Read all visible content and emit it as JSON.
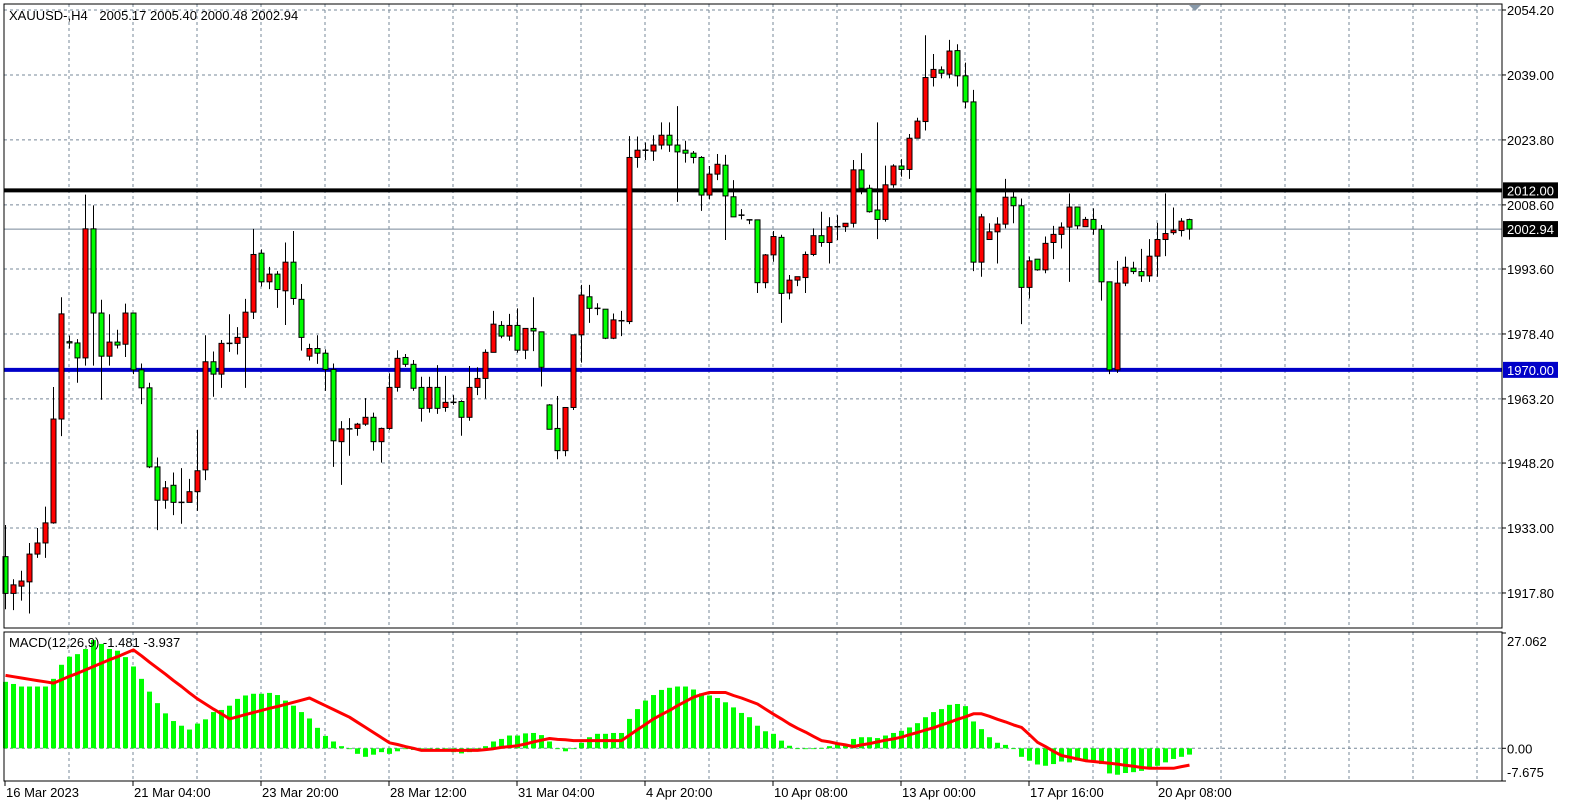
{
  "header": {
    "symbol": "XAUUSD-,H4",
    "ohlc_text": "2005.17 2005.40 2000.48 2002.94"
  },
  "macd_pane": {
    "label": "MACD(12,26,9) -1.481 -3.937",
    "axis_labels": [
      {
        "value": 27.062,
        "label": "27.062"
      },
      {
        "value": 0,
        "label": "0.00"
      },
      {
        "value": -7.675,
        "label": "-7.675"
      }
    ]
  },
  "chart_data": {
    "type": "candlestick",
    "symbol": "XAUUSD-",
    "timeframe": "H4",
    "ylim": [
      1917.8,
      2054.2
    ],
    "grid": true,
    "colors": {
      "bull": "#ff0000",
      "bear": "#00ff00",
      "outline": "#000000",
      "grid": "#778899",
      "macd_histogram": "#00ff00",
      "signal_line": "#ff0000"
    },
    "price_ticks": [
      {
        "value": 2054.2,
        "label": "2054.20"
      },
      {
        "value": 2039.0,
        "label": "2039.00"
      },
      {
        "value": 2023.8,
        "label": "2023.80"
      },
      {
        "value": 2008.6,
        "label": "2008.60"
      },
      {
        "value": 1993.6,
        "label": "1993.60"
      },
      {
        "value": 1978.4,
        "label": "1978.40"
      },
      {
        "value": 1963.2,
        "label": "1963.20"
      },
      {
        "value": 1948.2,
        "label": "1948.20"
      },
      {
        "value": 1933.0,
        "label": "1933.00"
      },
      {
        "value": 1917.8,
        "label": "1917.80"
      }
    ],
    "levels": [
      {
        "price": 2012.0,
        "label": "2012.00",
        "color": "#000000",
        "kind": "horizontal-line"
      },
      {
        "price": 1970.0,
        "label": "1970.00",
        "color": "#0000c8",
        "kind": "horizontal-line"
      },
      {
        "price": 2002.94,
        "label": "2002.94",
        "color": "#778899",
        "kind": "bid-line"
      }
    ],
    "time_labels": [
      {
        "bar": 0,
        "label": "16 Mar 2023"
      },
      {
        "bar": 16,
        "label": "21 Mar 04:00"
      },
      {
        "bar": 32,
        "label": "23 Mar 20:00"
      },
      {
        "bar": 48,
        "label": "28 Mar 12:00"
      },
      {
        "bar": 64,
        "label": "31 Mar 04:00"
      },
      {
        "bar": 80,
        "label": "4 Apr 20:00"
      },
      {
        "bar": 96,
        "label": "10 Apr 08:00"
      },
      {
        "bar": 112,
        "label": "13 Apr 00:00"
      },
      {
        "bar": 128,
        "label": "17 Apr 16:00"
      },
      {
        "bar": 144,
        "label": "20 Apr 08:00"
      }
    ],
    "ohlc_fields": [
      "open",
      "high",
      "low",
      "close"
    ],
    "ohlc": [
      [
        1926.3,
        1933.7,
        1914.0,
        1917.7
      ],
      [
        1917.7,
        1921.0,
        1913.8,
        1919.7
      ],
      [
        1919.4,
        1923.0,
        1916.0,
        1920.6
      ],
      [
        1920.4,
        1929.5,
        1913.0,
        1926.9
      ],
      [
        1926.9,
        1933.0,
        1926.0,
        1929.5
      ],
      [
        1929.5,
        1938.0,
        1926.0,
        1934.2
      ],
      [
        1934.2,
        1966.0,
        1934.0,
        1958.5
      ],
      [
        1958.5,
        1987.0,
        1954.5,
        1983.1
      ],
      [
        1976.6,
        1978.0,
        1975.0,
        1976.3
      ],
      [
        1976.3,
        1977.2,
        1967.0,
        1972.8
      ],
      [
        1972.8,
        2011.0,
        1971.0,
        2003.0
      ],
      [
        2003.0,
        2008.5,
        1971.0,
        1983.3
      ],
      [
        1983.3,
        1986.4,
        1963.0,
        1973.2
      ],
      [
        1973.2,
        1983.0,
        1971.0,
        1976.5
      ],
      [
        1976.5,
        1979.4,
        1975.0,
        1975.8
      ],
      [
        1976.0,
        1985.5,
        1973.0,
        1983.3
      ],
      [
        1983.3,
        1983.3,
        1969.0,
        1970.0
      ],
      [
        1970.0,
        1971.5,
        1962.0,
        1965.8
      ],
      [
        1965.8,
        1967.0,
        1947.0,
        1947.3
      ],
      [
        1947.3,
        1949.5,
        1932.5,
        1939.5
      ],
      [
        1939.5,
        1944.0,
        1937.5,
        1942.4
      ],
      [
        1943.0,
        1946.0,
        1936.0,
        1939.0
      ],
      [
        1939.0,
        1947.0,
        1934.0,
        1939.0
      ],
      [
        1939.0,
        1944.5,
        1939.0,
        1941.5
      ],
      [
        1941.5,
        1956.0,
        1937.0,
        1946.4
      ],
      [
        1946.6,
        1978.1,
        1944.2,
        1971.9
      ],
      [
        1971.9,
        1974.3,
        1963.7,
        1969.0
      ],
      [
        1969.0,
        1977.0,
        1965.8,
        1976.2
      ],
      [
        1976.2,
        1983.0,
        1974.2,
        1976.2
      ],
      [
        1976.2,
        1980.0,
        1973.6,
        1977.6
      ],
      [
        1977.6,
        1986.6,
        1965.8,
        1983.5
      ],
      [
        1983.5,
        2003.0,
        1981.9,
        1997.0
      ],
      [
        1997.3,
        1998.2,
        1989.5,
        1990.6
      ],
      [
        1990.6,
        1994.1,
        1988.9,
        1992.4
      ],
      [
        1992.4,
        1993.1,
        1984.5,
        1988.8
      ],
      [
        1988.5,
        1999.8,
        1980.5,
        1995.2
      ],
      [
        1995.2,
        2002.5,
        1985.2,
        1986.7
      ],
      [
        1986.5,
        1990.1,
        1974.5,
        1977.6
      ],
      [
        1973.2,
        1976.1,
        1972.2,
        1975.0
      ],
      [
        1975.0,
        1978.1,
        1971.4,
        1973.9
      ],
      [
        1973.9,
        1974.8,
        1965.1,
        1970.1
      ],
      [
        1970.1,
        1971.5,
        1947.3,
        1953.4
      ],
      [
        1953.2,
        1958.0,
        1943.1,
        1956.2
      ],
      [
        1956.2,
        1958.7,
        1949.9,
        1956.2
      ],
      [
        1956.3,
        1957.6,
        1954.6,
        1957.3
      ],
      [
        1957.3,
        1963.4,
        1956.9,
        1958.9
      ],
      [
        1958.9,
        1960.0,
        1951.1,
        1953.2
      ],
      [
        1953.2,
        1956.5,
        1948.3,
        1956.3
      ],
      [
        1956.3,
        1969.2,
        1956.0,
        1965.9
      ],
      [
        1965.9,
        1974.6,
        1964.9,
        1972.7
      ],
      [
        1972.9,
        1973.7,
        1970.7,
        1971.3
      ],
      [
        1971.3,
        1972.3,
        1965.1,
        1965.7
      ],
      [
        1965.9,
        1968.4,
        1957.9,
        1961.0
      ],
      [
        1961.0,
        1968.4,
        1960.0,
        1965.9
      ],
      [
        1965.9,
        1971.1,
        1959.7,
        1961.0
      ],
      [
        1961.2,
        1968.6,
        1960.2,
        1962.4
      ],
      [
        1962.4,
        1964.1,
        1961.8,
        1962.4
      ],
      [
        1962.6,
        1962.9,
        1954.6,
        1958.9
      ],
      [
        1958.9,
        1970.9,
        1958.1,
        1965.9
      ],
      [
        1965.9,
        1970.6,
        1964.1,
        1968.0
      ],
      [
        1968.0,
        1974.8,
        1963.3,
        1974.1
      ],
      [
        1974.1,
        1983.8,
        1974.1,
        1980.7
      ],
      [
        1980.4,
        1981.4,
        1977.4,
        1977.9
      ],
      [
        1977.9,
        1983.1,
        1976.8,
        1980.4
      ],
      [
        1980.4,
        1984.4,
        1974.0,
        1974.6
      ],
      [
        1974.6,
        1979.7,
        1972.5,
        1979.7
      ],
      [
        1979.7,
        1987.0,
        1974.4,
        1979.1
      ],
      [
        1978.9,
        1978.9,
        1966.1,
        1970.6
      ],
      [
        1961.8,
        1962.0,
        1956.1,
        1956.1
      ],
      [
        1956.3,
        1963.9,
        1949.1,
        1951.1
      ],
      [
        1951.1,
        1961.2,
        1949.8,
        1961.2
      ],
      [
        1961.2,
        1978.2,
        1960.6,
        1978.2
      ],
      [
        1978.2,
        1989.9,
        1971.7,
        1987.5
      ],
      [
        1987.1,
        1989.9,
        1981.0,
        1984.4
      ],
      [
        1984.4,
        1985.6,
        1982.8,
        1984.4
      ],
      [
        1984.2,
        1984.2,
        1977.2,
        1977.4
      ],
      [
        1977.4,
        1983.2,
        1977.2,
        1981.7
      ],
      [
        1981.5,
        1983.8,
        1977.9,
        1981.5
      ],
      [
        1981.3,
        2024.7,
        1980.7,
        2019.7
      ],
      [
        2019.7,
        2024.6,
        2017.3,
        2021.4
      ],
      [
        2021.4,
        2023.2,
        2019.1,
        2021.4
      ],
      [
        2021.2,
        2024.9,
        2018.9,
        2022.6
      ],
      [
        2022.6,
        2027.9,
        2021.6,
        2024.9
      ],
      [
        2024.9,
        2027.9,
        2021.0,
        2022.6
      ],
      [
        2022.6,
        2031.7,
        2009.3,
        2021.0
      ],
      [
        2021.4,
        2023.6,
        2018.5,
        2020.7
      ],
      [
        2020.7,
        2021.2,
        2018.3,
        2019.7
      ],
      [
        2019.7,
        2020.0,
        2007.2,
        2010.9
      ],
      [
        2010.9,
        2017.7,
        2009.9,
        2015.8
      ],
      [
        2015.8,
        2020.5,
        2014.4,
        2018.1
      ],
      [
        2017.9,
        2020.3,
        2000.4,
        2010.7
      ],
      [
        2010.5,
        2014.4,
        2005.8,
        2005.8
      ],
      [
        2006.2,
        2007.6,
        2005.2,
        2006.2
      ],
      [
        2005.1,
        2005.1,
        2004.1,
        2005.1
      ],
      [
        2005.1,
        2005.1,
        1988.0,
        1990.4
      ],
      [
        1990.4,
        1997.1,
        1989.1,
        1996.9
      ],
      [
        1996.9,
        2002.5,
        1995.3,
        2001.2
      ],
      [
        2001.0,
        2001.6,
        1981.0,
        1987.9
      ],
      [
        1988.0,
        1992.2,
        1986.5,
        1991.0
      ],
      [
        1991.0,
        1991.8,
        1989.6,
        1991.8
      ],
      [
        1991.6,
        1997.7,
        1988.0,
        1997.0
      ],
      [
        1997.0,
        2003.1,
        1996.6,
        2001.4
      ],
      [
        2001.4,
        2007.0,
        1998.8,
        1999.8
      ],
      [
        1999.8,
        2005.7,
        1994.9,
        2003.5
      ],
      [
        2003.5,
        2006.2,
        2000.4,
        2003.5
      ],
      [
        2003.5,
        2004.3,
        2002.3,
        2004.3
      ],
      [
        2004.3,
        2019.1,
        2003.3,
        2016.8
      ],
      [
        2016.8,
        2020.7,
        2011.1,
        2012.5
      ],
      [
        2012.5,
        2013.3,
        2006.8,
        2007.0
      ],
      [
        2007.4,
        2027.9,
        2000.6,
        2005.2
      ],
      [
        2005.2,
        2017.8,
        2004.7,
        2013.3
      ],
      [
        2013.3,
        2018.1,
        2012.6,
        2017.7
      ],
      [
        2017.7,
        2019.3,
        2015.2,
        2016.9
      ],
      [
        2016.9,
        2025.2,
        2014.7,
        2024.2
      ],
      [
        2024.2,
        2029.0,
        2024.2,
        2028.2
      ],
      [
        2028.1,
        2048.3,
        2026.0,
        2038.4
      ],
      [
        2038.4,
        2043.9,
        2036.3,
        2040.3
      ],
      [
        2040.2,
        2041.0,
        2038.2,
        2039.4
      ],
      [
        2039.2,
        2047.2,
        2038.2,
        2044.6
      ],
      [
        2044.7,
        2046.2,
        2036.3,
        2038.8
      ],
      [
        2038.8,
        2041.9,
        2031.2,
        2032.7
      ],
      [
        2032.7,
        2035.5,
        1993.1,
        1995.2
      ],
      [
        1995.2,
        2006.5,
        1991.8,
        2005.8
      ],
      [
        2000.5,
        2004.3,
        2000.5,
        2002.3
      ],
      [
        2002.3,
        2005.7,
        1994.9,
        2004.1
      ],
      [
        2004.1,
        2014.7,
        2003.1,
        2010.4
      ],
      [
        2010.4,
        2012.2,
        2004.3,
        2008.4
      ],
      [
        2008.4,
        2010.1,
        1980.7,
        1989.3
      ],
      [
        1989.3,
        1996.5,
        1986.7,
        1995.5
      ],
      [
        1995.9,
        1995.9,
        1993.2,
        1993.4
      ],
      [
        1993.4,
        2001.2,
        1992.6,
        1999.6
      ],
      [
        1999.8,
        2003.7,
        1995.9,
        2001.7
      ],
      [
        2001.7,
        2004.5,
        1998.4,
        2003.4
      ],
      [
        2003.4,
        2011.3,
        1990.6,
        2008.1
      ],
      [
        2008.1,
        2008.1,
        2002.9,
        2003.7
      ],
      [
        2003.5,
        2005.8,
        2003.5,
        2005.2
      ],
      [
        2005.2,
        2007.8,
        2001.6,
        2002.9
      ],
      [
        2002.9,
        2003.9,
        1986.2,
        1990.6
      ],
      [
        1990.6,
        1990.6,
        1969.0,
        1970.0
      ],
      [
        1970.0,
        1995.5,
        1969.3,
        1990.3
      ],
      [
        1990.3,
        1996.5,
        1989.6,
        1994.0
      ],
      [
        1993.8,
        1995.3,
        1992.4,
        1993.0
      ],
      [
        1993.0,
        1998.3,
        1990.6,
        1992.0
      ],
      [
        1992.0,
        2000.6,
        1990.6,
        1996.6
      ],
      [
        1996.6,
        2004.4,
        1991.8,
        2000.5
      ],
      [
        2000.5,
        2011.3,
        1996.6,
        2001.9
      ],
      [
        2002.1,
        2008.0,
        2001.6,
        2002.7
      ],
      [
        2002.6,
        2005.5,
        2001.2,
        2004.8
      ],
      [
        2005.17,
        2005.4,
        2000.48,
        2002.94
      ]
    ],
    "macd": {
      "ylim": [
        -7.675,
        27.062
      ],
      "histogram": [
        15.6,
        15.1,
        14.5,
        14.5,
        14.5,
        14.5,
        16.3,
        19.6,
        21.5,
        22.1,
        23.3,
        25.4,
        24.5,
        23.3,
        22.9,
        21.4,
        19.2,
        16.3,
        13.3,
        10.6,
        8.2,
        6.4,
        5.3,
        4.4,
        5.8,
        6.8,
        8.5,
        9.0,
        10.0,
        11.6,
        12.4,
        12.8,
        12.8,
        13.0,
        12.5,
        11.2,
        10.0,
        8.5,
        7.0,
        4.8,
        2.9,
        1.6,
        0.5,
        -0.2,
        -1.3,
        -2.0,
        -1.5,
        -0.9,
        -1.3,
        -0.7,
        -0.2,
        -0.4,
        -0.3,
        -0.4,
        -0.4,
        -0.4,
        -0.9,
        -1.2,
        -0.9,
        -0.5,
        0.5,
        1.6,
        2.2,
        3.0,
        3.0,
        3.5,
        3.6,
        3.1,
        1.6,
        -0.2,
        -0.7,
        0.0,
        1.3,
        2.6,
        3.4,
        3.4,
        3.6,
        3.6,
        6.9,
        9.2,
        11.2,
        12.5,
        13.7,
        14.2,
        14.5,
        14.5,
        13.8,
        12.9,
        12.4,
        11.8,
        10.8,
        9.6,
        8.3,
        7.3,
        5.3,
        4.0,
        3.4,
        1.8,
        0.6,
        0.0,
        -0.2,
        -0.1,
        0.1,
        0.5,
        0.9,
        1.0,
        2.2,
        2.6,
        2.6,
        2.4,
        3.0,
        3.6,
        4.1,
        4.9,
        5.9,
        7.3,
        8.5,
        9.2,
        10.2,
        10.4,
        9.9,
        6.3,
        4.5,
        2.6,
        1.3,
        0.8,
        0.0,
        -2.0,
        -2.9,
        -3.8,
        -4.1,
        -3.7,
        -3.1,
        -3.3,
        -2.9,
        -2.9,
        -3.3,
        -3.7,
        -5.9,
        -6.2,
        -5.8,
        -5.6,
        -5.3,
        -4.5,
        -4.1,
        -3.3,
        -2.5,
        -2.0,
        -1.481
      ],
      "signal": [
        17.1,
        16.8,
        16.5,
        16.2,
        15.9,
        15.6,
        15.3,
        16.1,
        16.9,
        17.6,
        18.4,
        19.2,
        20.0,
        20.8,
        21.5,
        22.3,
        23.1,
        21.7,
        20.2,
        18.8,
        17.4,
        15.9,
        14.5,
        13.0,
        11.6,
        10.4,
        9.2,
        8.1,
        6.9,
        7.4,
        7.9,
        8.4,
        8.9,
        9.4,
        9.8,
        10.3,
        10.8,
        11.3,
        11.8,
        10.9,
        10.0,
        9.1,
        8.2,
        7.3,
        6.1,
        4.9,
        3.7,
        2.5,
        1.3,
        0.9,
        0.4,
        0.0,
        -0.5,
        -0.5,
        -0.5,
        -0.5,
        -0.5,
        -0.5,
        -0.5,
        -0.5,
        -0.3,
        -0.1,
        0.2,
        0.4,
        0.6,
        1.0,
        1.5,
        1.9,
        2.3,
        2.1,
        2.0,
        1.8,
        1.8,
        1.8,
        1.8,
        1.8,
        1.8,
        1.8,
        3.1,
        4.4,
        5.6,
        6.9,
        7.9,
        8.9,
        10.0,
        11.0,
        12.0,
        12.6,
        13.1,
        13.1,
        13.1,
        12.4,
        11.8,
        11.1,
        10.4,
        9.2,
        8.0,
        6.9,
        5.7,
        4.7,
        3.8,
        2.8,
        1.8,
        1.5,
        1.1,
        0.8,
        0.4,
        0.8,
        1.1,
        1.5,
        1.9,
        2.2,
        2.6,
        3.2,
        3.7,
        4.3,
        4.8,
        5.5,
        6.1,
        6.8,
        7.4,
        8.1,
        8.1,
        7.5,
        6.8,
        6.2,
        5.5,
        4.9,
        3.2,
        1.4,
        0.4,
        -0.7,
        -1.7,
        -2.1,
        -2.5,
        -2.9,
        -3.1,
        -3.3,
        -3.5,
        -3.7,
        -4.0,
        -4.2,
        -4.5,
        -4.7,
        -4.7,
        -4.7,
        -4.7,
        -4.3,
        -3.937
      ]
    }
  }
}
